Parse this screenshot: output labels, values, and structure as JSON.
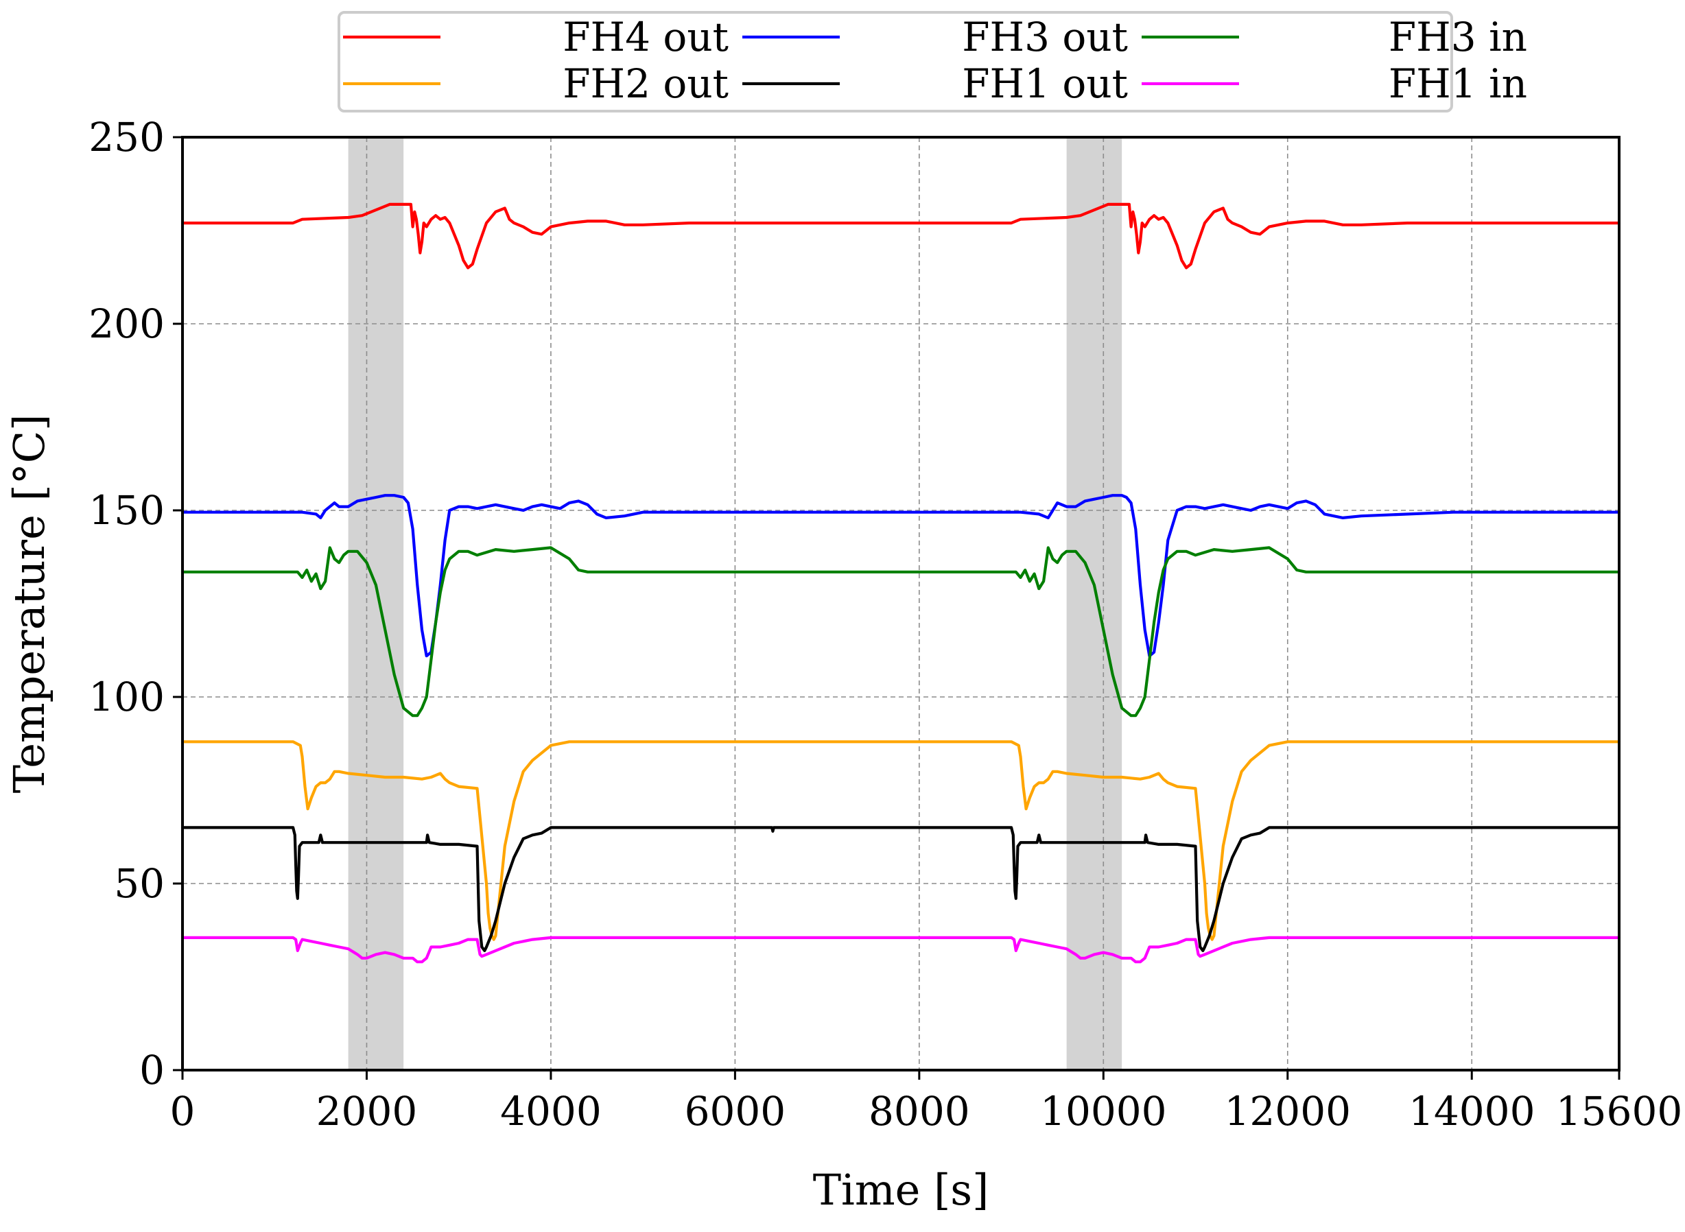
{
  "chart_data": {
    "type": "line",
    "title": "",
    "xlabel": "Time [s]",
    "ylabel": "Temperature [°C]",
    "xlim": [
      0,
      15600
    ],
    "ylim": [
      0,
      250
    ],
    "xticks": [
      0,
      2000,
      4000,
      6000,
      8000,
      10000,
      12000,
      14000,
      15600
    ],
    "yticks": [
      0,
      50,
      100,
      150,
      200,
      250
    ],
    "grid": true,
    "legend_position": "top-center",
    "shaded_regions": [
      [
        1800,
        2400
      ],
      [
        9600,
        10200
      ]
    ],
    "series": [
      {
        "name": "FH4 out",
        "color": "#ff0000",
        "x": [
          0,
          1200,
          1300,
          1800,
          1950,
          2100,
          2250,
          2400,
          2480,
          2500,
          2520,
          2540,
          2560,
          2580,
          2600,
          2620,
          2650,
          2700,
          2750,
          2800,
          2850,
          2900,
          3000,
          3050,
          3100,
          3150,
          3200,
          3300,
          3400,
          3500,
          3550,
          3600,
          3700,
          3800,
          3900,
          4000,
          4200,
          4400,
          4600,
          4800,
          5000,
          5500,
          6000,
          7800,
          8000,
          9000,
          9100,
          9600,
          9750,
          9900,
          10050,
          10200,
          10280,
          10300,
          10320,
          10340,
          10360,
          10380,
          10400,
          10420,
          10450,
          10500,
          10550,
          10600,
          10650,
          10700,
          10800,
          10850,
          10900,
          10950,
          11000,
          11100,
          11200,
          11300,
          11350,
          11400,
          11500,
          11600,
          11700,
          11800,
          12000,
          12200,
          12400,
          12600,
          12800,
          13300,
          13800,
          15600
        ],
        "values": [
          227,
          227,
          228,
          228.5,
          229,
          230.5,
          232,
          232,
          232,
          226,
          230,
          228,
          224,
          219,
          222,
          227,
          226,
          228,
          229,
          228,
          228.5,
          227,
          221,
          217,
          215,
          216,
          220,
          227,
          230,
          231,
          228,
          227,
          226,
          224.5,
          224,
          226,
          227,
          227.5,
          227.5,
          226.5,
          226.5,
          227,
          227,
          227,
          227,
          227,
          228,
          228.5,
          229,
          230.5,
          232,
          232,
          232,
          226,
          230,
          228,
          224,
          219,
          222,
          227,
          226,
          228,
          229,
          228,
          228.5,
          227,
          221,
          217,
          215,
          216,
          220,
          227,
          230,
          231,
          228,
          227,
          226,
          224.5,
          224,
          226,
          227,
          227.5,
          227.5,
          226.5,
          226.5,
          227,
          227,
          227
        ]
      },
      {
        "name": "FH3 out",
        "color": "#0000ff",
        "x": [
          0,
          1000,
          1300,
          1450,
          1500,
          1550,
          1650,
          1700,
          1800,
          1900,
          2000,
          2100,
          2200,
          2300,
          2400,
          2450,
          2500,
          2550,
          2600,
          2650,
          2700,
          2750,
          2800,
          2850,
          2900,
          3000,
          3100,
          3200,
          3300,
          3400,
          3500,
          3600,
          3700,
          3800,
          3900,
          4000,
          4100,
          4200,
          4300,
          4400,
          4500,
          4600,
          4800,
          5000,
          6000,
          7800,
          8000,
          9000,
          9100,
          9300,
          9400,
          9450,
          9500,
          9600,
          9700,
          9800,
          9900,
          10000,
          10100,
          10200,
          10250,
          10300,
          10350,
          10400,
          10450,
          10500,
          10550,
          10600,
          10650,
          10700,
          10800,
          10900,
          11000,
          11100,
          11200,
          11300,
          11400,
          11500,
          11600,
          11700,
          11800,
          11900,
          12000,
          12100,
          12200,
          12300,
          12400,
          12600,
          12800,
          13800,
          15600
        ],
        "values": [
          149.5,
          149.5,
          149.5,
          149,
          148,
          150,
          152,
          151,
          151,
          152.5,
          153,
          153.5,
          154,
          154,
          153.5,
          152,
          145,
          130,
          118,
          111,
          112,
          120,
          130,
          142,
          150,
          151,
          151,
          150.5,
          151,
          151.5,
          151,
          150.5,
          150,
          151,
          151.5,
          151,
          150.5,
          152,
          152.5,
          151.5,
          149,
          148,
          148.5,
          149.5,
          149.5,
          149.5,
          149.5,
          149.5,
          149.5,
          149,
          148,
          150,
          152,
          151,
          151,
          152.5,
          153,
          153.5,
          154,
          154,
          153.5,
          152,
          145,
          130,
          118,
          111,
          112,
          120,
          130,
          142,
          150,
          151,
          151,
          150.5,
          151,
          151.5,
          151,
          150.5,
          150,
          151,
          151.5,
          151,
          150.5,
          152,
          152.5,
          151.5,
          149,
          148,
          148.5,
          149.5,
          149.5
        ]
      },
      {
        "name": "FH3 in",
        "color": "#007f00",
        "x": [
          0,
          1000,
          1250,
          1300,
          1350,
          1400,
          1450,
          1500,
          1550,
          1600,
          1650,
          1700,
          1750,
          1800,
          1900,
          2000,
          2100,
          2200,
          2300,
          2400,
          2500,
          2550,
          2600,
          2650,
          2700,
          2750,
          2800,
          2850,
          2900,
          3000,
          3100,
          3200,
          3400,
          3600,
          3800,
          4000,
          4200,
          4300,
          4400,
          4500,
          4800,
          5000,
          6000,
          7800,
          8000,
          9000,
          9050,
          9100,
          9150,
          9200,
          9250,
          9300,
          9350,
          9400,
          9450,
          9500,
          9550,
          9600,
          9700,
          9800,
          9900,
          10000,
          10100,
          10200,
          10300,
          10350,
          10400,
          10450,
          10500,
          10550,
          10600,
          10650,
          10700,
          10800,
          10900,
          11000,
          11200,
          11400,
          11600,
          11800,
          12000,
          12100,
          12200,
          12300,
          12600,
          12800,
          13800,
          15600
        ],
        "values": [
          133.5,
          133.5,
          133.5,
          132,
          134,
          131,
          133,
          129,
          131,
          140,
          137,
          136,
          138,
          139,
          139,
          136,
          130,
          118,
          106,
          97,
          95,
          95,
          97,
          100,
          110,
          120,
          128,
          134,
          137,
          139,
          139,
          138,
          139.5,
          139,
          139.5,
          140,
          137,
          134,
          133.5,
          133.5,
          133.5,
          133.5,
          133.5,
          133.5,
          133.5,
          133.5,
          133.5,
          132,
          134,
          131,
          133,
          129,
          131,
          140,
          137,
          136,
          138,
          139,
          139,
          136,
          130,
          118,
          106,
          97,
          95,
          95,
          97,
          100,
          110,
          120,
          128,
          134,
          137,
          139,
          139,
          138,
          139.5,
          139,
          139.5,
          140,
          137,
          134,
          133.5,
          133.5,
          133.5,
          133.5,
          133.5,
          133.5
        ]
      },
      {
        "name": "FH2 out",
        "color": "#ffa500",
        "x": [
          0,
          1200,
          1280,
          1300,
          1330,
          1360,
          1400,
          1450,
          1500,
          1550,
          1600,
          1650,
          1700,
          1800,
          2000,
          2200,
          2400,
          2600,
          2700,
          2800,
          2850,
          2900,
          2950,
          3000,
          3200,
          3300,
          3320,
          3340,
          3360,
          3380,
          3400,
          3450,
          3500,
          3600,
          3700,
          3800,
          3900,
          4000,
          4200,
          4500,
          5000,
          6000,
          7800,
          8000,
          9000,
          9080,
          9100,
          9130,
          9160,
          9200,
          9250,
          9300,
          9350,
          9400,
          9450,
          9500,
          9600,
          9800,
          10000,
          10200,
          10400,
          10500,
          10600,
          10650,
          10700,
          10750,
          10800,
          11000,
          11100,
          11120,
          11140,
          11160,
          11180,
          11200,
          11250,
          11300,
          11400,
          11500,
          11600,
          11700,
          11800,
          12000,
          12300,
          12800,
          13800,
          15600
        ],
        "values": [
          88,
          88,
          87,
          84,
          76,
          70,
          73,
          76,
          77,
          77,
          78,
          80,
          80,
          79.5,
          79,
          78.5,
          78.5,
          78,
          78.5,
          79.5,
          78,
          77,
          76.5,
          76,
          75.5,
          50,
          42,
          38,
          36,
          35,
          36,
          48,
          60,
          72,
          80,
          83,
          85,
          87,
          88,
          88,
          88,
          88,
          88,
          88,
          88,
          87,
          84,
          76,
          70,
          73,
          76,
          77,
          77,
          78,
          80,
          80,
          79.5,
          79,
          78.5,
          78.5,
          78,
          78.5,
          79.5,
          78,
          77,
          76.5,
          76,
          75.5,
          50,
          42,
          38,
          36,
          35,
          36,
          48,
          60,
          72,
          80,
          83,
          85,
          87,
          88,
          88,
          88,
          88,
          88
        ]
      },
      {
        "name": "FH1 out",
        "color": "#000000",
        "x": [
          0,
          1200,
          1220,
          1230,
          1240,
          1250,
          1260,
          1270,
          1300,
          1400,
          1480,
          1500,
          1520,
          1600,
          1800,
          2000,
          2200,
          2600,
          2650,
          2660,
          2680,
          2800,
          3000,
          3200,
          3220,
          3250,
          3280,
          3300,
          3350,
          3400,
          3500,
          3600,
          3700,
          3800,
          3900,
          4000,
          4200,
          5000,
          6000,
          6400,
          6410,
          6420,
          7800,
          8000,
          9000,
          9020,
          9030,
          9040,
          9050,
          9060,
          9070,
          9100,
          9200,
          9280,
          9300,
          9320,
          9400,
          9600,
          9800,
          10000,
          10400,
          10450,
          10460,
          10480,
          10600,
          10800,
          11000,
          11020,
          11050,
          11080,
          11100,
          11150,
          11200,
          11300,
          11400,
          11500,
          11600,
          11700,
          11800,
          12000,
          12800,
          13800,
          15600
        ],
        "values": [
          65,
          65,
          63,
          55,
          48,
          46,
          52,
          60,
          61,
          61,
          61,
          63,
          61,
          61,
          61,
          61,
          61,
          61,
          61,
          63,
          61,
          60.5,
          60.5,
          60,
          40,
          33,
          32,
          33,
          36,
          40,
          50,
          57,
          62,
          63,
          63.5,
          65,
          65,
          65,
          65,
          65,
          64,
          65,
          65,
          65,
          65,
          63,
          55,
          48,
          46,
          52,
          60,
          61,
          61,
          61,
          63,
          61,
          61,
          61,
          61,
          61,
          61,
          61,
          63,
          61,
          60.5,
          60.5,
          60,
          40,
          33,
          32,
          33,
          36,
          40,
          50,
          57,
          62,
          63,
          63.5,
          65,
          65,
          65,
          65,
          65
        ]
      },
      {
        "name": "FH1 in",
        "color": "#ff00ff",
        "x": [
          0,
          1200,
          1230,
          1250,
          1280,
          1300,
          1400,
          1500,
          1600,
          1700,
          1800,
          1900,
          1950,
          2000,
          2100,
          2200,
          2300,
          2400,
          2500,
          2550,
          2600,
          2650,
          2700,
          2800,
          2900,
          3000,
          3100,
          3200,
          3230,
          3250,
          3300,
          3400,
          3600,
          3800,
          4000,
          5000,
          6000,
          7800,
          8000,
          9000,
          9030,
          9050,
          9080,
          9100,
          9200,
          9300,
          9400,
          9500,
          9600,
          9700,
          9750,
          9800,
          9900,
          10000,
          10100,
          10200,
          10300,
          10350,
          10400,
          10450,
          10500,
          10600,
          10700,
          10800,
          10900,
          11000,
          11030,
          11050,
          11100,
          11200,
          11400,
          11600,
          11800,
          12800,
          13800,
          15600
        ],
        "values": [
          35.5,
          35.5,
          35,
          32,
          34,
          35,
          34.5,
          34,
          33.5,
          33,
          32.5,
          31,
          30,
          30,
          31,
          31.5,
          31,
          30,
          30,
          29,
          29,
          30,
          33,
          33,
          33.5,
          34,
          35,
          35,
          31,
          30.5,
          31,
          32,
          34,
          35,
          35.5,
          35.5,
          35.5,
          35.5,
          35.5,
          35.5,
          35,
          32,
          34,
          35,
          34.5,
          34,
          33.5,
          33,
          32.5,
          31,
          30,
          30,
          31,
          31.5,
          31,
          30,
          30,
          29,
          29,
          30,
          33,
          33,
          33.5,
          34,
          35,
          35,
          31,
          30.5,
          31,
          32,
          34,
          35,
          35.5,
          35.5,
          35.5,
          35.5
        ]
      }
    ]
  }
}
